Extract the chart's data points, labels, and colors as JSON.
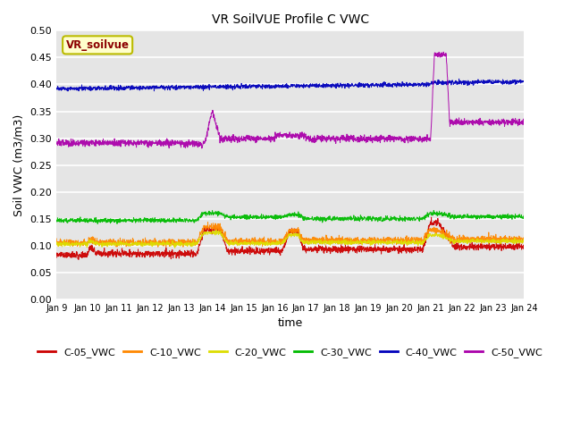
{
  "title": "VR SoilVUE Profile C VWC",
  "xlabel": "time",
  "ylabel": "Soil VWC (m3/m3)",
  "ylim": [
    0.0,
    0.5
  ],
  "yticks": [
    0.0,
    0.05,
    0.1,
    0.15,
    0.2,
    0.25,
    0.3,
    0.35,
    0.4,
    0.45,
    0.5
  ],
  "xstart": 9,
  "xend": 24,
  "bg_color": "#e5e5e5",
  "grid_color": "#ffffff",
  "legend_label": "VR_soilvue",
  "series_colors": {
    "C-05_VWC": "#cc0000",
    "C-10_VWC": "#ff8800",
    "C-20_VWC": "#dddd00",
    "C-30_VWC": "#00bb00",
    "C-40_VWC": "#0000bb",
    "C-50_VWC": "#aa00aa"
  }
}
